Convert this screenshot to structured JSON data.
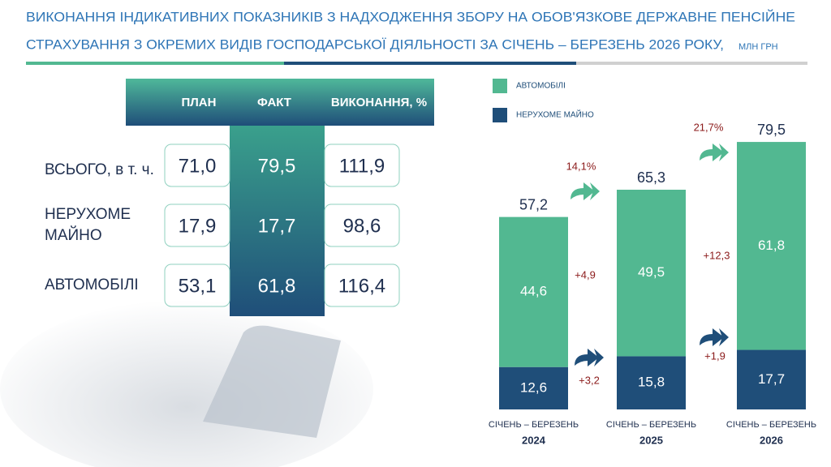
{
  "title": [
    "ВИКОНАННЯ ІНДИКАТИВНИХ ПОКАЗНИКІВ З НАДХОДЖЕННЯ ЗБОРУ НА ОБОВ'ЯЗКОВЕ ДЕРЖАВНЕ ПЕНСІЙНЕ",
    "СТРАХУВАННЯ З ОКРЕМИХ ВИДІВ ГОСПОДАРСЬКОЇ ДІЯЛЬНОСТІ ЗА СІЧЕНЬ – БЕРЕЗЕНЬ 2026 РОКУ,"
  ],
  "unit": "МЛН ГРН",
  "table": {
    "headers": [
      "ПЛАН",
      "ФАКТ",
      "ВИКОНАННЯ, %"
    ],
    "rows": [
      {
        "label": [
          "ВСЬОГО, в т. ч."
        ],
        "cells": [
          "71,0",
          "79,5",
          "111,9"
        ]
      },
      {
        "label": [
          "НЕРУХОМЕ",
          "МАЙНО"
        ],
        "cells": [
          "17,9",
          "17,7",
          "98,6"
        ]
      },
      {
        "label": [
          "АВТОМОБІЛІ"
        ],
        "cells": [
          "53,1",
          "61,8",
          "116,4"
        ]
      }
    ]
  },
  "chart_data": {
    "type": "stacked_bar",
    "categories": [
      [
        "СІЧЕНЬ – БЕРЕЗЕНЬ",
        "2024"
      ],
      [
        "СІЧЕНЬ – БЕРЕЗЕНЬ",
        "2025"
      ],
      [
        "СІЧЕНЬ – БЕРЕЗЕНЬ",
        "2026"
      ]
    ],
    "series": [
      {
        "name": "НЕРУХОМЕ МАЙНО",
        "color": "#1f4e79",
        "values": [
          12.6,
          15.8,
          17.7
        ],
        "value_labels": [
          "12,6",
          "15,8",
          "17,7"
        ]
      },
      {
        "name": "АВТОМОБІЛІ",
        "color": "#52b891",
        "values": [
          44.6,
          49.5,
          61.8
        ],
        "value_labels": [
          "44,6",
          "49,5",
          "61,8"
        ]
      }
    ],
    "totals": [
      57.2,
      65.3,
      79.5
    ],
    "total_labels": [
      "57,2",
      "65,3",
      "79,5"
    ],
    "growth_labels": [
      "14,1%",
      "21,7%"
    ],
    "series_change_labels": [
      [
        "+3,2",
        "+1,9"
      ],
      [
        "+4,9",
        "+12,3"
      ]
    ]
  }
}
